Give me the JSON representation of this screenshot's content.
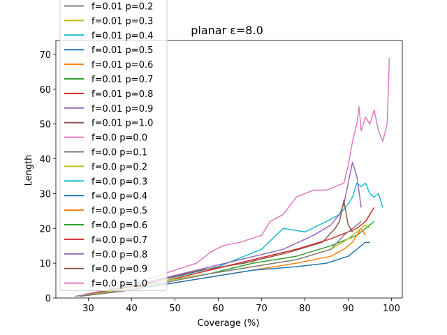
{
  "chart_data": {
    "type": "line",
    "title": "planar ε=8.0",
    "xlabel": "Coverage (%)",
    "ylabel": "Length",
    "xlim": [
      22.5,
      102.5
    ],
    "ylim": [
      0,
      74
    ],
    "xticks": [
      30,
      40,
      50,
      60,
      70,
      80,
      90,
      100
    ],
    "yticks": [
      0,
      10,
      20,
      30,
      40,
      50,
      60,
      70
    ],
    "legend_position": "upper-left (partially cut off at top)",
    "legend_entries": [
      {
        "label": "f=0.01 p=0.2",
        "color": "#7f7f7f"
      },
      {
        "label": "f=0.01 p=0.3",
        "color": "#bcbd22"
      },
      {
        "label": "f=0.01 p=0.4",
        "color": "#17becf"
      },
      {
        "label": "f=0.01 p=0.5",
        "color": "#1f77b4"
      },
      {
        "label": "f=0.01 p=0.6",
        "color": "#ff7f0e"
      },
      {
        "label": "f=0.01 p=0.7",
        "color": "#2ca02c"
      },
      {
        "label": "f=0.01 p=0.8",
        "color": "#d62728"
      },
      {
        "label": "f=0.01 p=0.9",
        "color": "#9467bd"
      },
      {
        "label": "f=0.01 p=1.0",
        "color": "#8c564b"
      },
      {
        "label": "f=0.0 p=0.0",
        "color": "#e377c2"
      },
      {
        "label": "f=0.0 p=0.1",
        "color": "#7f7f7f"
      },
      {
        "label": "f=0.0 p=0.2",
        "color": "#bcbd22"
      },
      {
        "label": "f=0.0 p=0.3",
        "color": "#17becf"
      },
      {
        "label": "f=0.0 p=0.4",
        "color": "#1f77b4"
      },
      {
        "label": "f=0.0 p=0.5",
        "color": "#ff7f0e"
      },
      {
        "label": "f=0.0 p=0.6",
        "color": "#2ca02c"
      },
      {
        "label": "f=0.0 p=0.7",
        "color": "#d62728"
      },
      {
        "label": "f=0.0 p=0.8",
        "color": "#9467bd"
      },
      {
        "label": "f=0.0 p=0.9",
        "color": "#8c564b"
      },
      {
        "label": "f=0.0 p=1.0",
        "color": "#e377c2"
      }
    ],
    "series": [
      {
        "color": "#e377c2",
        "x": [
          29,
          35,
          40,
          45,
          50,
          55,
          58,
          61,
          65,
          70,
          72,
          75,
          78,
          80,
          82,
          85,
          87,
          89,
          90,
          91,
          92,
          92.5,
          93,
          94,
          95,
          96,
          97,
          98,
          99,
          99.5
        ],
        "y": [
          1,
          2.5,
          4,
          6,
          8,
          10,
          13,
          15,
          16,
          18,
          22,
          24,
          29,
          30,
          31,
          31,
          32,
          33,
          38,
          45,
          50,
          55,
          48,
          52,
          50,
          54,
          48,
          45,
          50,
          69
        ]
      },
      {
        "color": "#17becf",
        "x": [
          30,
          40,
          50,
          60,
          70,
          75,
          80,
          85,
          88,
          90,
          91,
          92,
          93,
          94,
          95,
          96,
          97,
          98
        ],
        "y": [
          1,
          4,
          6,
          9,
          14,
          20,
          19,
          22,
          24,
          27,
          29,
          33,
          32,
          33,
          30,
          29,
          30,
          26
        ]
      },
      {
        "color": "#9467bd",
        "x": [
          27,
          35,
          45,
          55,
          65,
          75,
          82,
          86,
          88,
          89,
          90,
          91,
          92,
          93
        ],
        "y": [
          0.5,
          2,
          5,
          8,
          11,
          14,
          18,
          21,
          24,
          27,
          33,
          39,
          35,
          26
        ]
      },
      {
        "color": "#8c564b",
        "x": [
          28,
          36,
          46,
          56,
          66,
          76,
          84,
          87,
          88,
          89,
          90,
          91
        ],
        "y": [
          0.5,
          2,
          5,
          8,
          10,
          13,
          16,
          20,
          22,
          28,
          21,
          19
        ]
      },
      {
        "color": "#d62728",
        "x": [
          28,
          38,
          48,
          58,
          68,
          78,
          86,
          90,
          92,
          94,
          95,
          96
        ],
        "y": [
          0.5,
          3,
          5,
          8,
          11,
          14,
          17,
          19,
          20,
          22,
          24,
          26
        ]
      },
      {
        "color": "#2ca02c",
        "x": [
          28,
          38,
          48,
          58,
          68,
          78,
          86,
          90,
          92,
          94,
          95,
          96
        ],
        "y": [
          0.5,
          2.5,
          5,
          7,
          10,
          12,
          15,
          17,
          18,
          20,
          21,
          22
        ]
      },
      {
        "color": "#ff7f0e",
        "x": [
          28,
          38,
          48,
          58,
          68,
          78,
          86,
          89,
          91,
          92,
          93,
          94
        ],
        "y": [
          0.5,
          2,
          4,
          6,
          8,
          10,
          12,
          14,
          16,
          18,
          20,
          18
        ]
      },
      {
        "color": "#1f77b4",
        "x": [
          28,
          38,
          48,
          58,
          68,
          78,
          85,
          90,
          92,
          94,
          95
        ],
        "y": [
          0.5,
          2,
          4,
          6,
          8,
          9,
          10,
          12,
          14,
          16,
          16
        ]
      },
      {
        "color": "#bcbd22",
        "x": [
          28,
          38,
          48,
          58,
          68,
          78,
          86,
          90,
          92,
          94,
          95
        ],
        "y": [
          0.5,
          2.5,
          5,
          7,
          9,
          11,
          14,
          17,
          19,
          21,
          20
        ]
      },
      {
        "color": "#7f7f7f",
        "x": [
          28,
          38,
          48,
          58,
          68,
          78,
          86,
          89,
          91,
          93
        ],
        "y": [
          0.5,
          2,
          4.5,
          7,
          9,
          11,
          14,
          18,
          20,
          22
        ]
      }
    ]
  }
}
